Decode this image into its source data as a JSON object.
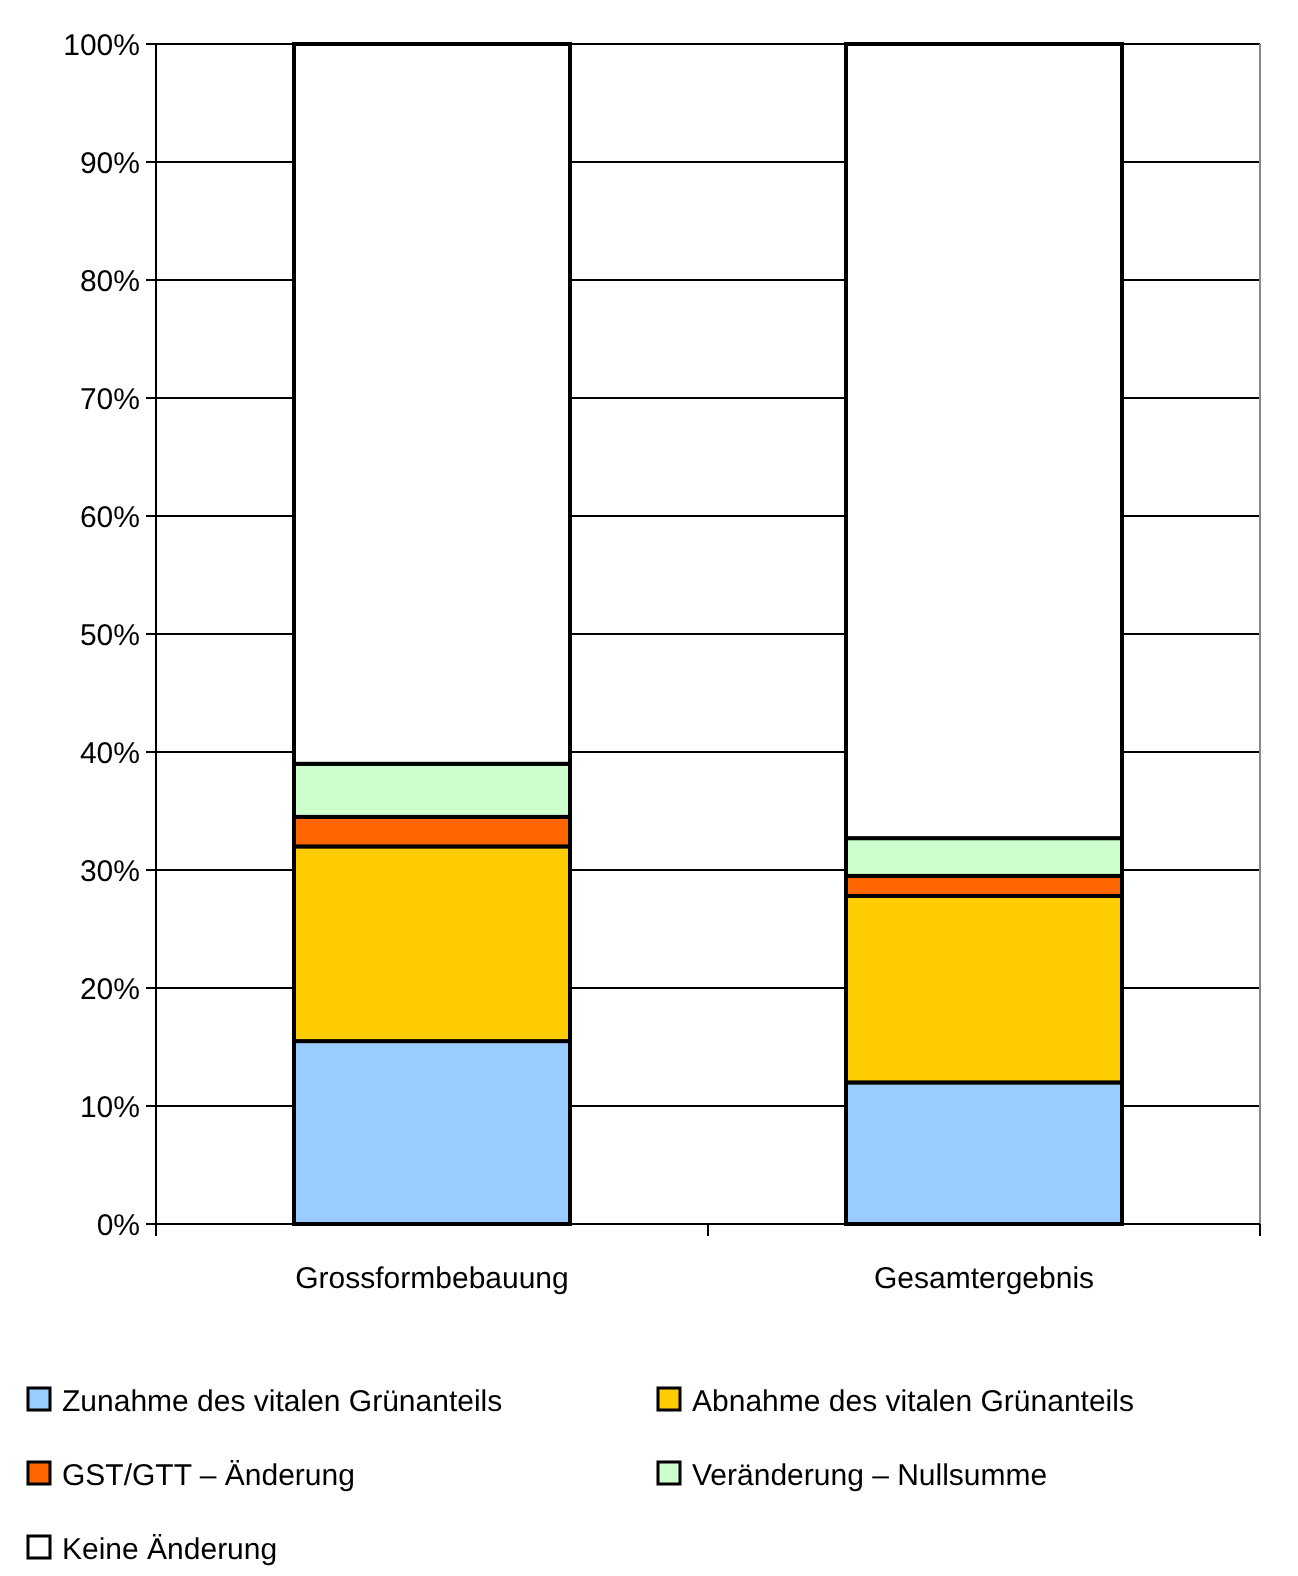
{
  "chart_data": {
    "type": "bar",
    "stacked": true,
    "categories": [
      "Grossformbebauung",
      "Gesamtergebnis"
    ],
    "series": [
      {
        "name": "Zunahme des vitalen Grünanteils",
        "color": "#99ccff",
        "values": [
          15.5,
          12
        ]
      },
      {
        "name": "Abnahme des vitalen Grünanteils",
        "color": "#ffcc00",
        "values": [
          16.5,
          15.8
        ]
      },
      {
        "name": "GST/GTT – Änderung",
        "color": "#ff6600",
        "values": [
          2.5,
          1.7
        ]
      },
      {
        "name": "Veränderung – Nullsumme",
        "color": "#ccffcc",
        "values": [
          4.5,
          3.2
        ]
      },
      {
        "name": "Keine Änderung",
        "color": "#ffffff",
        "values": [
          61,
          67.3
        ]
      }
    ],
    "ylim": [
      0,
      100
    ],
    "yticks": [
      {
        "value": 0,
        "label": "0%"
      },
      {
        "value": 10,
        "label": "10%"
      },
      {
        "value": 20,
        "label": "20%"
      },
      {
        "value": 30,
        "label": "30%"
      },
      {
        "value": 40,
        "label": "40%"
      },
      {
        "value": 50,
        "label": "50%"
      },
      {
        "value": 60,
        "label": "60%"
      },
      {
        "value": 70,
        "label": "70%"
      },
      {
        "value": 80,
        "label": "80%"
      },
      {
        "value": 90,
        "label": "90%"
      },
      {
        "value": 100,
        "label": "100%"
      }
    ],
    "grid": "y",
    "legend": "bottom"
  }
}
